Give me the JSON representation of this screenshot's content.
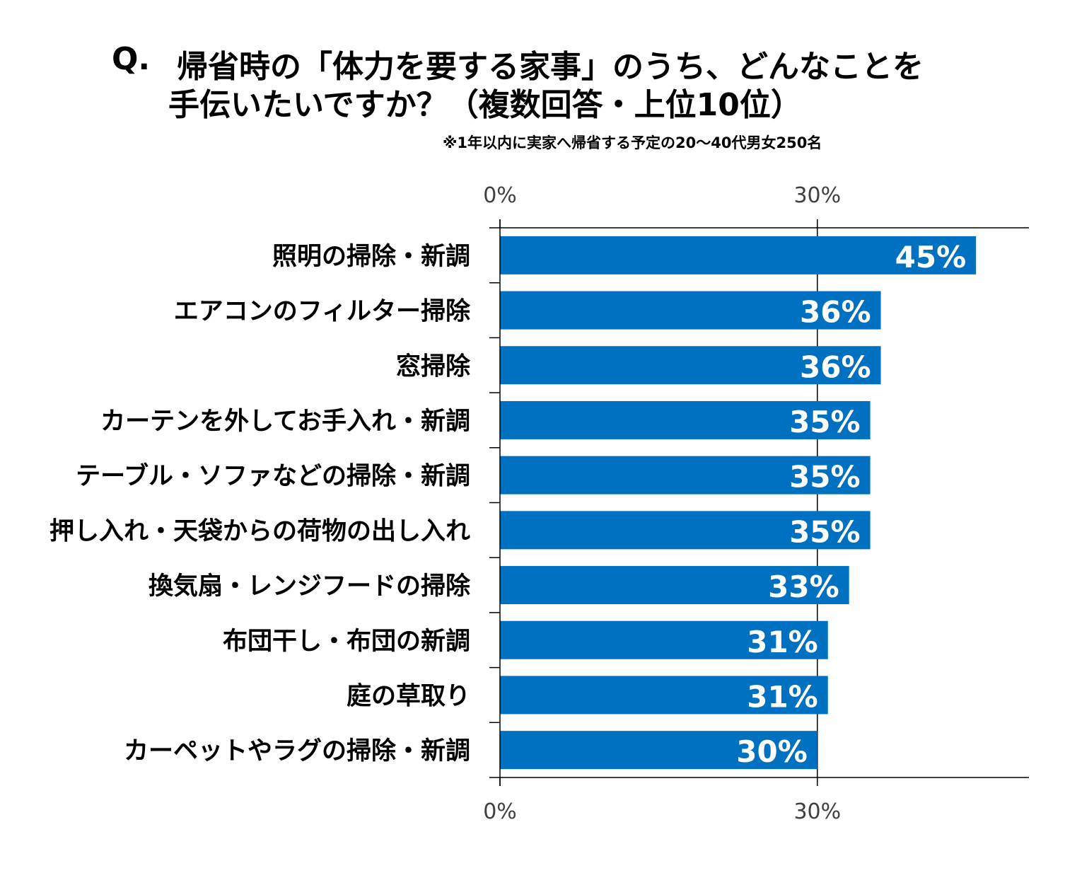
{
  "title": {
    "q_mark": "Q.",
    "line1": "帰省時の「体力を要する家事」のうち、どんなことを",
    "line2": "手伝いたいですか？（複数回答・上位10位）"
  },
  "note": "※1年以内に実家へ帰省する予定の20～40代男女250名",
  "chart_data": {
    "type": "bar",
    "orientation": "horizontal",
    "categories": [
      "照明の掃除・新調",
      "エアコンのフィルター掃除",
      "窓掃除",
      "カーテンを外してお手入れ・新調",
      "テーブル・ソファなどの掃除・新調",
      "押し入れ・天袋からの荷物の出し入れ",
      "換気扇・レンジフードの掃除",
      "布団干し・布団の新調",
      "庭の草取り",
      "カーペットやラグの掃除・新調"
    ],
    "values": [
      45,
      36,
      36,
      35,
      35,
      35,
      33,
      31,
      31,
      30
    ],
    "data_labels": [
      "45%",
      "36%",
      "36%",
      "35%",
      "35%",
      "35%",
      "33%",
      "31%",
      "31%",
      "30%"
    ],
    "xlim": [
      0,
      50
    ],
    "ticks": [
      0,
      30
    ],
    "tick_labels": [
      "0%",
      "30%"
    ],
    "grid": true,
    "bar_color": "#0070C0",
    "label_color": "#ffffff"
  }
}
